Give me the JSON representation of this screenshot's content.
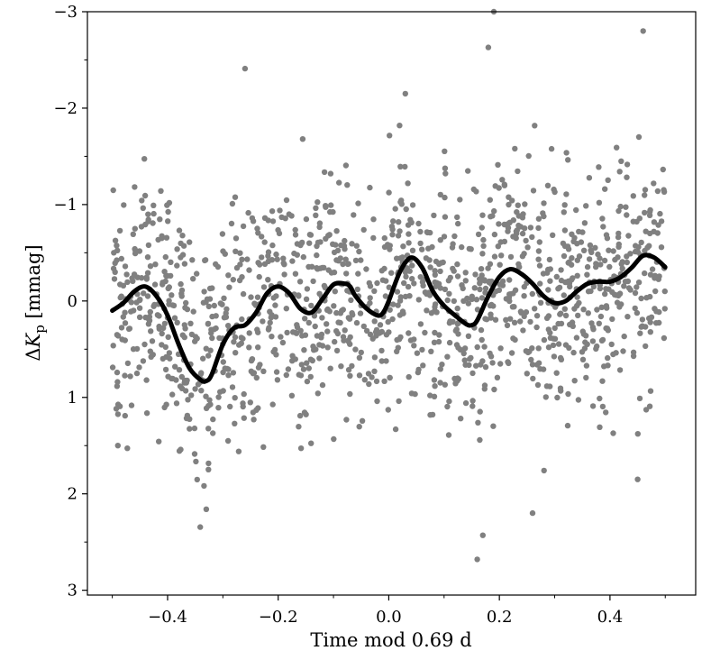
{
  "chart_data": {
    "type": "scatter",
    "title": "",
    "xlabel": "Time  mod 0.69 d",
    "ylabel_prefix": "Δ",
    "ylabel_var": "K",
    "ylabel_sub": "p",
    "ylabel_unit": " [mmag]",
    "xlim": [
      -0.545,
      0.555
    ],
    "ylim": [
      3.05,
      -3.0
    ],
    "y_inverted": true,
    "grid": false,
    "xticks": [
      -0.4,
      -0.2,
      0.0,
      0.2,
      0.4
    ],
    "xtick_labels": [
      "−0.4",
      "−0.2",
      "0.0",
      "0.2",
      "0.4"
    ],
    "yticks": [
      -3,
      -2,
      -1,
      0,
      1,
      2,
      3
    ],
    "ytick_labels": [
      "−3",
      "−2",
      "−1",
      "0",
      "1",
      "2",
      "3"
    ],
    "colors": {
      "points": "#808080",
      "model": "#000000"
    },
    "scatter": {
      "name": "",
      "n_points": 1400,
      "x_range": [
        -0.5,
        0.5
      ],
      "y_mean": 0.05,
      "y_std": 0.6,
      "notable_points": [
        {
          "x": 0.19,
          "y": -3.0
        },
        {
          "x": 0.18,
          "y": -2.63
        },
        {
          "x": -0.26,
          "y": -2.41
        },
        {
          "x": 0.03,
          "y": -2.15
        },
        {
          "x": 0.46,
          "y": -2.8
        },
        {
          "x": 0.17,
          "y": 2.43
        },
        {
          "x": 0.16,
          "y": 2.68
        },
        {
          "x": 0.26,
          "y": 2.2
        },
        {
          "x": -0.33,
          "y": 2.16
        },
        {
          "x": 0.45,
          "y": 1.85
        },
        {
          "x": -0.49,
          "y": 1.5
        }
      ]
    },
    "model_curve": {
      "name": "",
      "x": [
        -0.5,
        -0.48,
        -0.46,
        -0.44,
        -0.42,
        -0.4,
        -0.38,
        -0.36,
        -0.34,
        -0.33,
        -0.32,
        -0.3,
        -0.28,
        -0.26,
        -0.24,
        -0.22,
        -0.2,
        -0.18,
        -0.16,
        -0.14,
        -0.12,
        -0.1,
        -0.08,
        -0.07,
        -0.06,
        -0.04,
        -0.02,
        -0.01,
        0.0,
        0.02,
        0.04,
        0.06,
        0.08,
        0.1,
        0.12,
        0.14,
        0.15,
        0.16,
        0.18,
        0.2,
        0.22,
        0.24,
        0.26,
        0.28,
        0.3,
        0.32,
        0.34,
        0.36,
        0.38,
        0.4,
        0.42,
        0.44,
        0.46,
        0.48,
        0.5
      ],
      "y": [
        0.1,
        0.02,
        -0.1,
        -0.15,
        -0.05,
        0.15,
        0.45,
        0.7,
        0.82,
        0.83,
        0.76,
        0.45,
        0.28,
        0.25,
        0.12,
        -0.08,
        -0.15,
        -0.08,
        0.08,
        0.12,
        -0.02,
        -0.17,
        -0.18,
        -0.15,
        -0.05,
        0.08,
        0.15,
        0.12,
        0.0,
        -0.3,
        -0.45,
        -0.35,
        -0.1,
        0.05,
        0.15,
        0.24,
        0.25,
        0.2,
        -0.05,
        -0.25,
        -0.33,
        -0.28,
        -0.18,
        -0.05,
        0.02,
        0.0,
        -0.1,
        -0.18,
        -0.2,
        -0.2,
        -0.25,
        -0.35,
        -0.47,
        -0.45,
        -0.35
      ]
    }
  }
}
